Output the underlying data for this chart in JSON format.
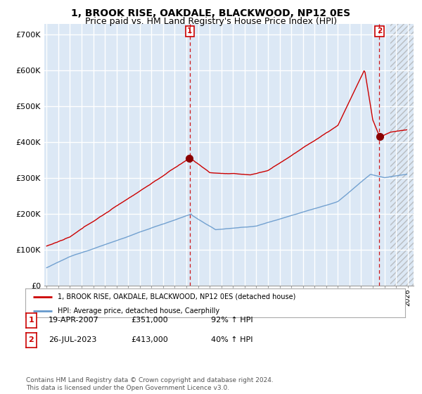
{
  "title": "1, BROOK RISE, OAKDALE, BLACKWOOD, NP12 0ES",
  "subtitle": "Price paid vs. HM Land Registry's House Price Index (HPI)",
  "ylim": [
    0,
    730000
  ],
  "yticks": [
    0,
    100000,
    200000,
    300000,
    400000,
    500000,
    600000,
    700000
  ],
  "ytick_labels": [
    "£0",
    "£100K",
    "£200K",
    "£300K",
    "£400K",
    "£500K",
    "£600K",
    "£700K"
  ],
  "plot_bg_color": "#dce8f5",
  "grid_color": "#ffffff",
  "line1_color": "#cc0000",
  "line2_color": "#6699cc",
  "sale1_x": 2007.29,
  "sale2_x": 2023.56,
  "vline_color": "#cc0000",
  "legend_line1": "1, BROOK RISE, OAKDALE, BLACKWOOD, NP12 0ES (detached house)",
  "legend_line2": "HPI: Average price, detached house, Caerphilly",
  "table_row1": [
    "1",
    "19-APR-2007",
    "£351,000",
    "92% ↑ HPI"
  ],
  "table_row2": [
    "2",
    "26-JUL-2023",
    "£413,000",
    "40% ↑ HPI"
  ],
  "footnote": "Contains HM Land Registry data © Crown copyright and database right 2024.\nThis data is licensed under the Open Government Licence v3.0.",
  "title_fontsize": 10,
  "subtitle_fontsize": 9,
  "hatch_start": 2024.5,
  "xlim_left": 1994.8,
  "xlim_right": 2026.5
}
